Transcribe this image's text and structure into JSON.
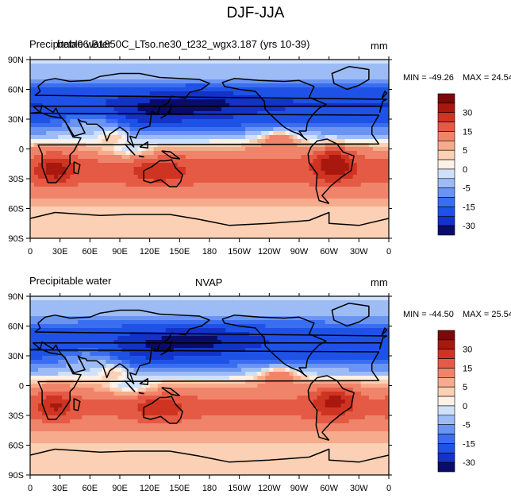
{
  "figure": {
    "title": "DJF-JJA"
  },
  "colors": {
    "palette": [
      "#0b0b6b",
      "#1232c8",
      "#1e52e6",
      "#3a6ef0",
      "#6a94f2",
      "#9dbcf6",
      "#cfe0fa",
      "#fdf0e6",
      "#fbd0b4",
      "#f6ac8c",
      "#f0846a",
      "#e55a44",
      "#cf3422",
      "#a8180f",
      "#7a0909"
    ],
    "land": "#000000"
  },
  "chart_data": [
    {
      "type": "heatmap",
      "id": "model",
      "left_label": "Precipitable water",
      "overlay_label": "beta06.B1850C_LTso.ne30_t232_wgx3.187 (yrs 10-39)",
      "units": "mm",
      "min_text": "MIN = -49.26",
      "max_text": "MAX =  24.54",
      "xticks": [
        "0",
        "30E",
        "60E",
        "90E",
        "120E",
        "150E",
        "180",
        "150W",
        "120W",
        "90W",
        "60W",
        "30W",
        "0"
      ],
      "yticks": [
        "90N",
        "60N",
        "30N",
        "0",
        "30S",
        "60S",
        "90S"
      ],
      "xlim": [
        0,
        360
      ],
      "ylim": [
        -90,
        90
      ],
      "colorbar_labels": [
        "30",
        "15",
        "5",
        "0",
        "-5",
        "-15",
        "-30"
      ],
      "colorbar_levels": [
        -40,
        -30,
        -20,
        -15,
        -10,
        -5,
        -2,
        0,
        2,
        5,
        10,
        15,
        20,
        30,
        40
      ],
      "features": {
        "nh_winter_drying": -30,
        "sh_moistening": 12,
        "south_america_peak": 24,
        "south_africa_peak": 22
      }
    },
    {
      "type": "heatmap",
      "id": "obs",
      "left_label": "Precipitable water",
      "center_label": "NVAP",
      "units": "mm",
      "min_text": "MIN = -44.50",
      "max_text": "MAX =  25.54",
      "xticks": [
        "0",
        "30E",
        "60E",
        "90E",
        "120E",
        "150E",
        "180",
        "150W",
        "120W",
        "90W",
        "60W",
        "30W",
        "0"
      ],
      "yticks": [
        "90N",
        "60N",
        "30N",
        "0",
        "30S",
        "60S",
        "90S"
      ],
      "xlim": [
        0,
        360
      ],
      "ylim": [
        -90,
        90
      ],
      "colorbar_labels": [
        "30",
        "15",
        "5",
        "0",
        "-5",
        "-15",
        "-30"
      ],
      "colorbar_levels": [
        -40,
        -30,
        -20,
        -15,
        -10,
        -5,
        -2,
        0,
        2,
        5,
        10,
        15,
        20,
        30,
        40
      ],
      "features": {
        "nh_winter_drying": -28,
        "sh_moistening": 11,
        "south_america_peak": 20,
        "south_africa_peak": 18
      }
    }
  ]
}
